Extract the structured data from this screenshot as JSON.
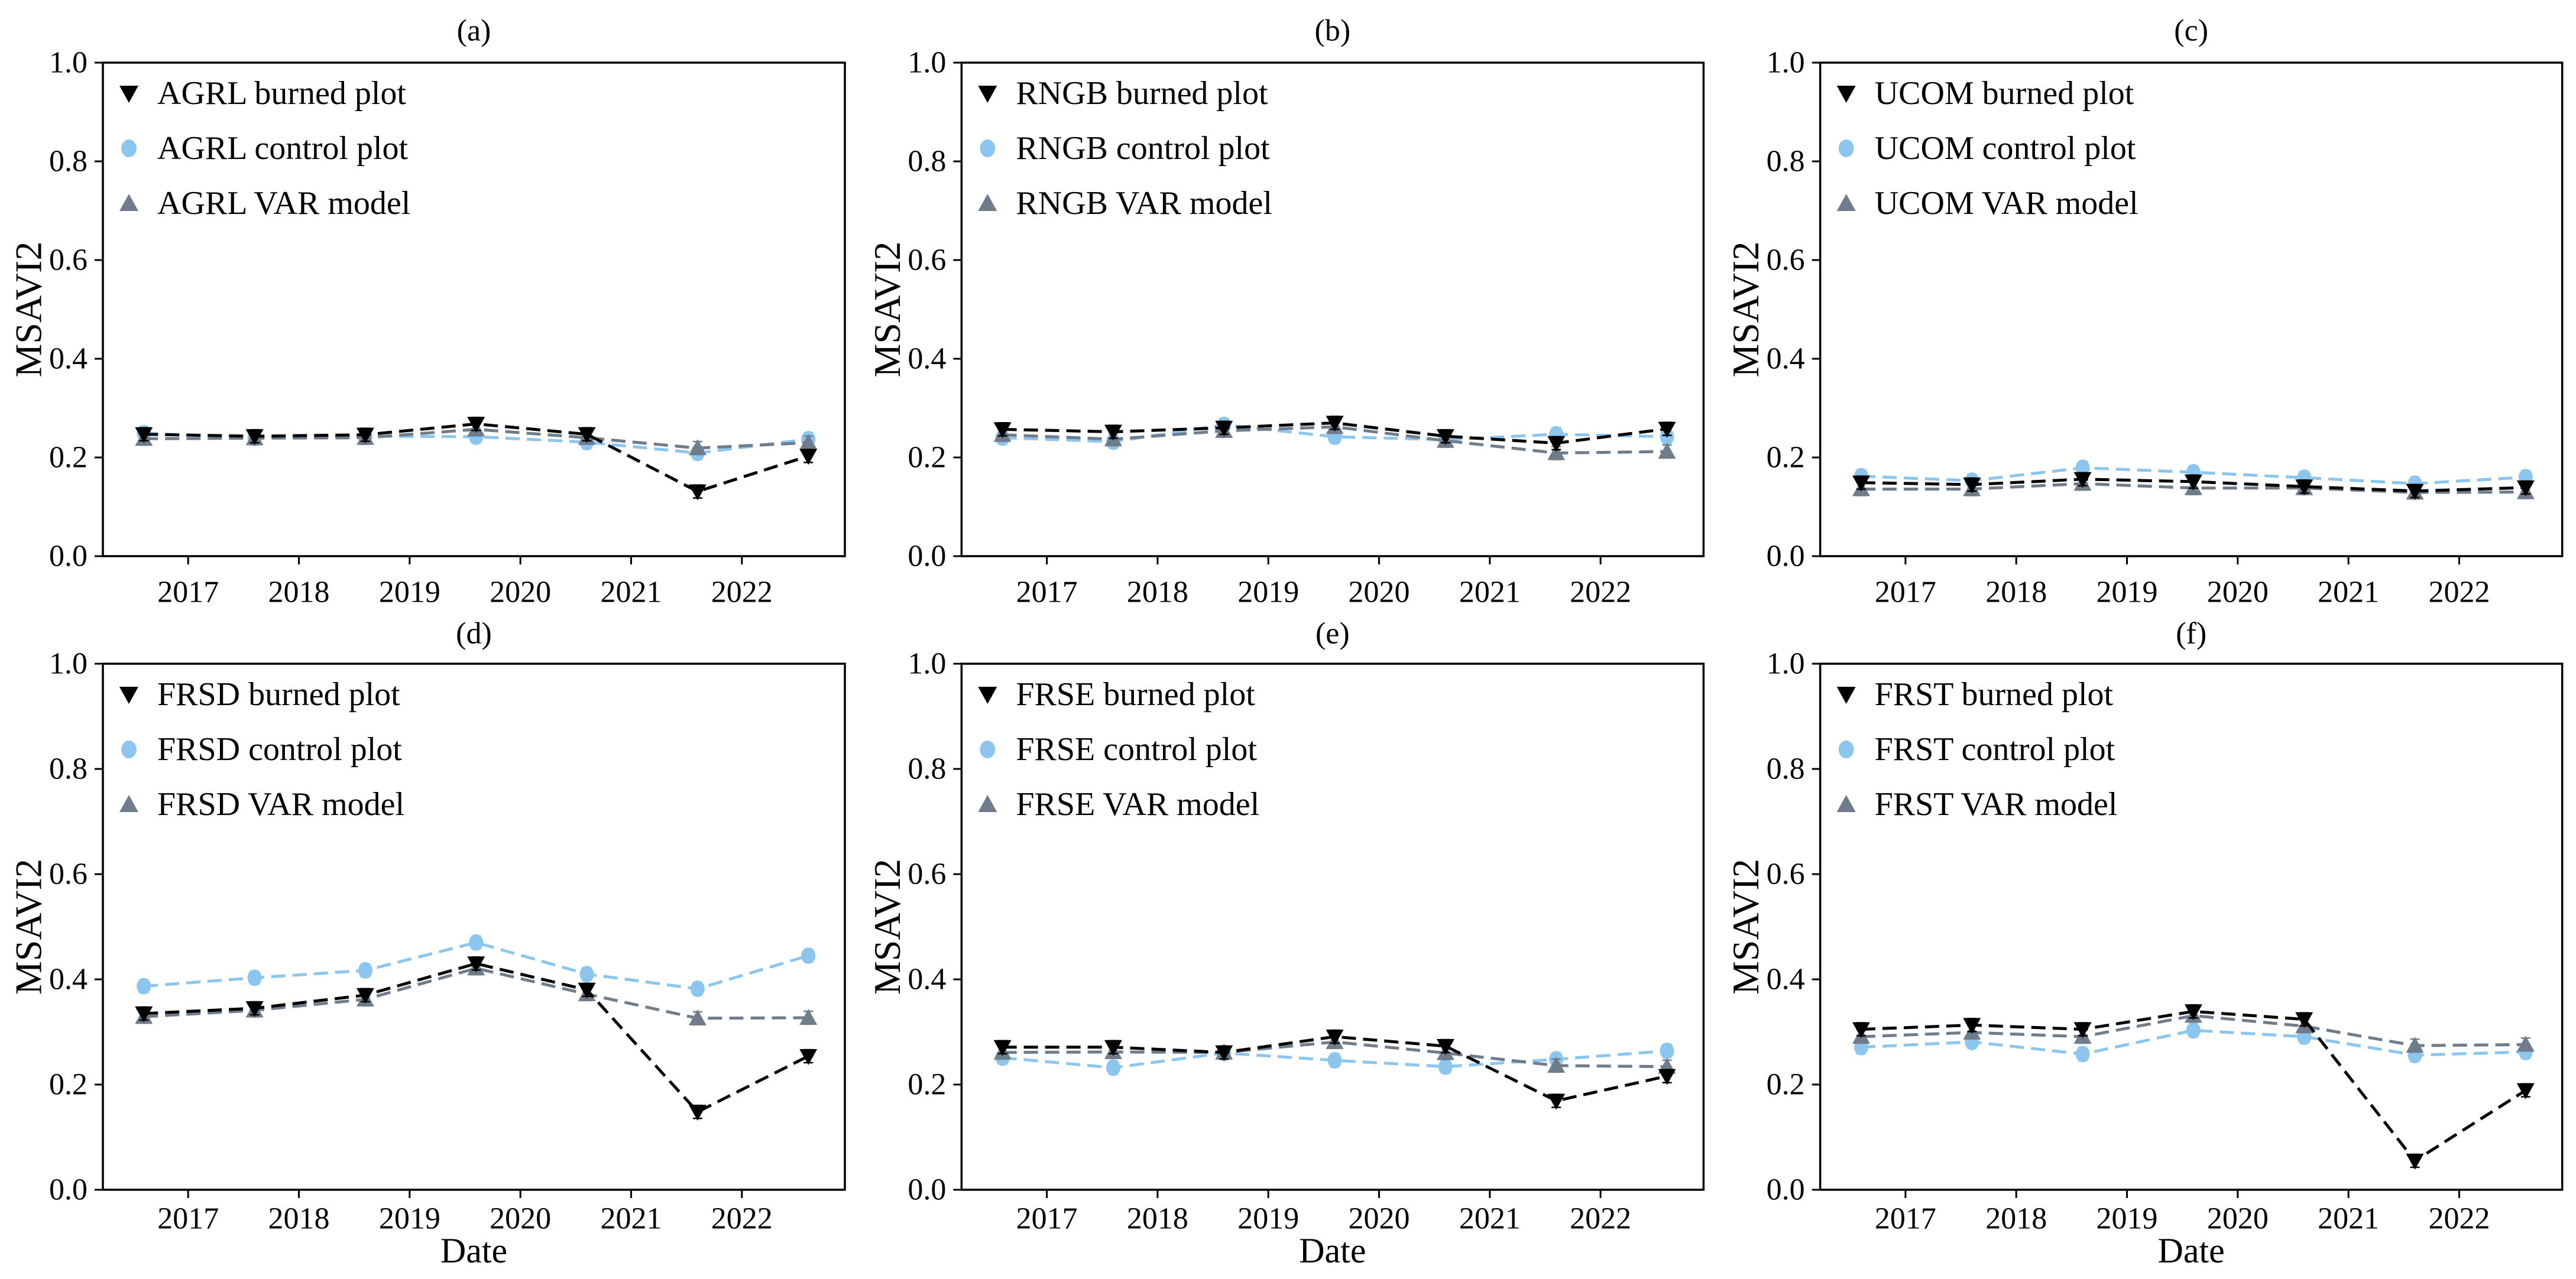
{
  "figure": {
    "ylabel": "MSAVI2",
    "xlabel": "Date",
    "background": "#ffffff",
    "axis_color": "#000000",
    "colors": {
      "burned": "#000000",
      "control": "#8CC6EF",
      "var": "#6E7C8C"
    },
    "ylim": [
      0.0,
      1.0
    ],
    "xlim": [
      2016.23,
      2022.93
    ],
    "y_ticks": [
      {
        "value": 0.0,
        "label": "0.0"
      },
      {
        "value": 0.2,
        "label": "0.2"
      },
      {
        "value": 0.4,
        "label": "0.4"
      },
      {
        "value": 0.6,
        "label": "0.6"
      },
      {
        "value": 0.8,
        "label": "0.8"
      },
      {
        "value": 1.0,
        "label": "1.0"
      }
    ],
    "x_ticks": [
      {
        "value": 2017,
        "label": "2017"
      },
      {
        "value": 2018,
        "label": "2018"
      },
      {
        "value": 2019,
        "label": "2019"
      },
      {
        "value": 2020,
        "label": "2020"
      },
      {
        "value": 2021,
        "label": "2021"
      },
      {
        "value": 2022,
        "label": "2022"
      }
    ],
    "grid": false,
    "legend_position": "upper-left"
  },
  "chart_data": [
    {
      "type": "line",
      "id": "a",
      "title": "(a)",
      "site": "AGRL",
      "x": [
        2016.6,
        2017.6,
        2018.6,
        2019.6,
        2020.6,
        2021.6,
        2022.6
      ],
      "series": [
        {
          "key": "burned",
          "name": "AGRL burned plot",
          "marker": "triangle-down",
          "values": [
            0.247,
            0.243,
            0.246,
            0.268,
            0.247,
            0.131,
            0.203
          ]
        },
        {
          "key": "control",
          "name": "AGRL control plot",
          "marker": "circle",
          "values": [
            0.249,
            0.24,
            0.243,
            0.242,
            0.231,
            0.209,
            0.237
          ]
        },
        {
          "key": "var",
          "name": "AGRL VAR model",
          "marker": "triangle-up",
          "values": [
            0.238,
            0.239,
            0.24,
            0.257,
            0.24,
            0.219,
            0.23
          ]
        }
      ]
    },
    {
      "type": "line",
      "id": "b",
      "title": "(b)",
      "site": "RNGB",
      "x": [
        2016.6,
        2017.6,
        2018.6,
        2019.6,
        2020.6,
        2021.6,
        2022.6
      ],
      "series": [
        {
          "key": "burned",
          "name": "RNGB burned plot",
          "marker": "triangle-down",
          "values": [
            0.257,
            0.252,
            0.26,
            0.27,
            0.243,
            0.229,
            0.258
          ]
        },
        {
          "key": "control",
          "name": "RNGB control plot",
          "marker": "circle",
          "values": [
            0.24,
            0.232,
            0.266,
            0.242,
            0.236,
            0.247,
            0.242
          ]
        },
        {
          "key": "var",
          "name": "RNGB VAR model",
          "marker": "triangle-up",
          "values": [
            0.246,
            0.237,
            0.254,
            0.262,
            0.234,
            0.209,
            0.212
          ]
        }
      ]
    },
    {
      "type": "line",
      "id": "c",
      "title": "(c)",
      "site": "UCOM",
      "x": [
        2016.6,
        2017.6,
        2018.6,
        2019.6,
        2020.6,
        2021.6,
        2022.6
      ],
      "series": [
        {
          "key": "burned",
          "name": "UCOM burned plot",
          "marker": "triangle-down",
          "values": [
            0.149,
            0.145,
            0.156,
            0.151,
            0.141,
            0.132,
            0.139
          ]
        },
        {
          "key": "control",
          "name": "UCOM control plot",
          "marker": "circle",
          "values": [
            0.162,
            0.153,
            0.179,
            0.17,
            0.159,
            0.147,
            0.16
          ]
        },
        {
          "key": "var",
          "name": "UCOM VAR model",
          "marker": "triangle-up",
          "values": [
            0.136,
            0.136,
            0.147,
            0.138,
            0.138,
            0.129,
            0.13
          ]
        }
      ]
    },
    {
      "type": "line",
      "id": "d",
      "title": "(d)",
      "site": "FRSD",
      "x": [
        2016.6,
        2017.6,
        2018.6,
        2019.6,
        2020.6,
        2021.6,
        2022.6
      ],
      "series": [
        {
          "key": "burned",
          "name": "FRSD burned plot",
          "marker": "triangle-down",
          "values": [
            0.335,
            0.345,
            0.37,
            0.43,
            0.38,
            0.148,
            0.254
          ]
        },
        {
          "key": "control",
          "name": "FRSD control plot",
          "marker": "circle",
          "values": [
            0.387,
            0.403,
            0.417,
            0.47,
            0.41,
            0.382,
            0.445
          ]
        },
        {
          "key": "var",
          "name": "FRSD VAR model",
          "marker": "triangle-up",
          "values": [
            0.329,
            0.341,
            0.362,
            0.421,
            0.372,
            0.326,
            0.327
          ]
        }
      ]
    },
    {
      "type": "line",
      "id": "e",
      "title": "(e)",
      "site": "FRSE",
      "x": [
        2016.6,
        2017.6,
        2018.6,
        2019.6,
        2020.6,
        2021.6,
        2022.6
      ],
      "series": [
        {
          "key": "burned",
          "name": "FRSE burned plot",
          "marker": "triangle-down",
          "values": [
            0.271,
            0.271,
            0.261,
            0.291,
            0.273,
            0.169,
            0.216
          ]
        },
        {
          "key": "control",
          "name": "FRSE control plot",
          "marker": "circle",
          "values": [
            0.251,
            0.232,
            0.26,
            0.246,
            0.234,
            0.248,
            0.264
          ]
        },
        {
          "key": "var",
          "name": "FRSE VAR model",
          "marker": "triangle-up",
          "values": [
            0.261,
            0.262,
            0.261,
            0.281,
            0.26,
            0.236,
            0.234
          ]
        }
      ]
    },
    {
      "type": "line",
      "id": "f",
      "title": "(f)",
      "site": "FRST",
      "x": [
        2016.6,
        2017.6,
        2018.6,
        2019.6,
        2020.6,
        2021.6,
        2022.6
      ],
      "series": [
        {
          "key": "burned",
          "name": "FRST burned plot",
          "marker": "triangle-down",
          "values": [
            0.305,
            0.313,
            0.305,
            0.339,
            0.324,
            0.055,
            0.189
          ]
        },
        {
          "key": "control",
          "name": "FRST control plot",
          "marker": "circle",
          "values": [
            0.271,
            0.281,
            0.258,
            0.303,
            0.291,
            0.256,
            0.262
          ]
        },
        {
          "key": "var",
          "name": "FRST VAR model",
          "marker": "triangle-up",
          "values": [
            0.291,
            0.299,
            0.291,
            0.331,
            0.311,
            0.274,
            0.276
          ]
        }
      ]
    }
  ]
}
